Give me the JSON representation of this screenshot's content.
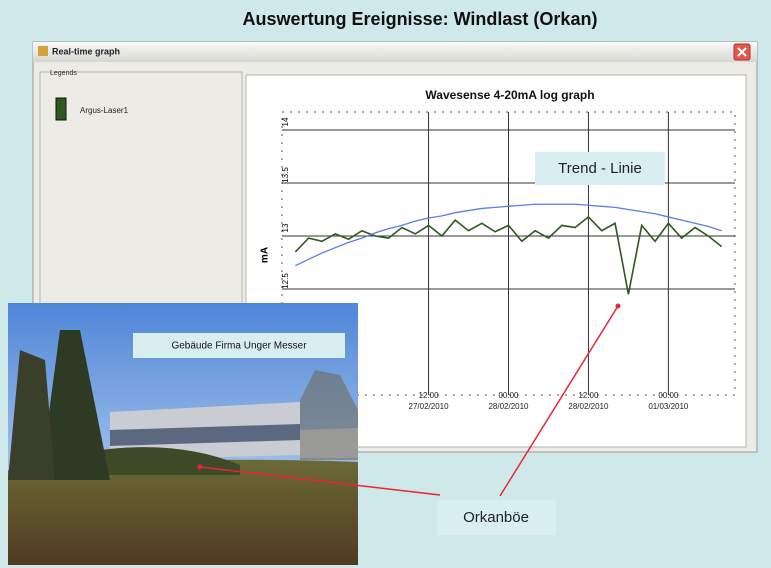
{
  "title": "Auswertung Ereignisse:   Windlast (Orkan)",
  "window": {
    "title": "Real-time graph",
    "legends_label": "Legends"
  },
  "chart_data": {
    "type": "line",
    "title": "Wavesense 4-20mA log graph",
    "y_label": "mA",
    "x": [
      "2010-02-26T16:00",
      "2010-02-26T18:00",
      "2010-02-26T20:00",
      "2010-02-26T22:00",
      "2010-02-27T00:00",
      "2010-02-27T02:00",
      "2010-02-27T04:00",
      "2010-02-27T06:00",
      "2010-02-27T08:00",
      "2010-02-27T10:00",
      "2010-02-27T12:00",
      "2010-02-27T14:00",
      "2010-02-27T16:00",
      "2010-02-27T18:00",
      "2010-02-27T20:00",
      "2010-02-27T22:00",
      "2010-02-28T00:00",
      "2010-02-28T02:00",
      "2010-02-28T04:00",
      "2010-02-28T06:00",
      "2010-02-28T08:00",
      "2010-02-28T10:00",
      "2010-02-28T12:00",
      "2010-02-28T14:00",
      "2010-02-28T16:00",
      "2010-02-28T18:00",
      "2010-02-28T20:00",
      "2010-02-28T22:00",
      "2010-03-01T00:00",
      "2010-03-01T02:00",
      "2010-03-01T04:00",
      "2010-03-01T06:00",
      "2010-03-01T08:00"
    ],
    "series": [
      {
        "name": "Argus-Laser1",
        "color": "#2d5a1e",
        "values": [
          12.85,
          12.98,
          12.95,
          13.02,
          12.97,
          13.05,
          13.0,
          12.98,
          13.08,
          13.02,
          13.1,
          13.0,
          13.15,
          13.05,
          13.12,
          13.04,
          13.1,
          12.95,
          13.05,
          12.98,
          13.1,
          13.08,
          13.18,
          13.05,
          13.12,
          12.45,
          13.1,
          12.95,
          13.12,
          12.98,
          13.08,
          13.0,
          12.9
        ]
      },
      {
        "name": "Trend - Linie",
        "color": "#5a7fe0",
        "values": [
          12.72,
          12.78,
          12.84,
          12.89,
          12.94,
          12.98,
          13.03,
          13.07,
          13.1,
          13.14,
          13.17,
          13.19,
          13.22,
          13.24,
          13.26,
          13.27,
          13.28,
          13.29,
          13.3,
          13.3,
          13.3,
          13.3,
          13.29,
          13.28,
          13.27,
          13.25,
          13.23,
          13.21,
          13.18,
          13.15,
          13.12,
          13.09,
          13.05
        ]
      }
    ],
    "xlim": [
      "2010-02-26T14:00",
      "2010-03-01T10:00"
    ],
    "xticks": [
      {
        "value": "2010-02-27T12:00",
        "label": "12:00\n27/02/2010"
      },
      {
        "value": "2010-02-28T00:00",
        "label": "00:00\n28/02/2010"
      },
      {
        "value": "2010-02-28T12:00",
        "label": "12:00\n28/02/2010"
      },
      {
        "value": "2010-03-01T00:00",
        "label": "00:00\n01/03/2010"
      }
    ],
    "ylim": [
      11.5,
      14.17
    ],
    "yticks": [
      12.5,
      13,
      13.5,
      14
    ],
    "grid": true
  },
  "photo": {
    "caption": "Gebäude Firma Unger Messer"
  },
  "annotations": {
    "gust": "Orkanböe"
  }
}
